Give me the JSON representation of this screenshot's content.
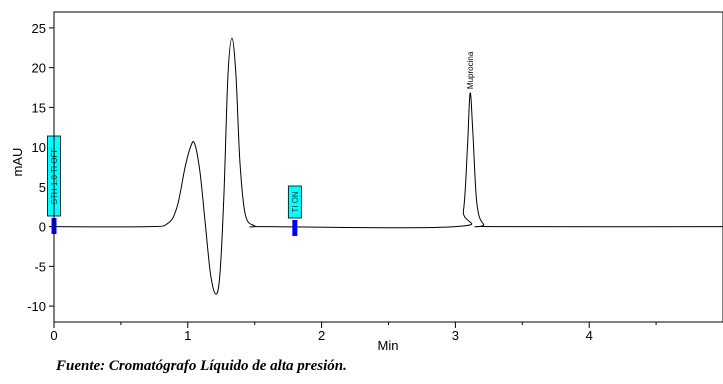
{
  "caption": "Fuente: Cromatógrafo Líquido de alta presión.",
  "chart_data": {
    "type": "line",
    "title": "",
    "xlabel": "Min",
    "ylabel": "mAU",
    "xlim": [
      0,
      5
    ],
    "ylim": [
      -12,
      27
    ],
    "x_ticks": [
      "0",
      "1",
      "2",
      "3",
      "4"
    ],
    "y_ticks": [
      "-10",
      "-5",
      "0",
      "5",
      "10",
      "15",
      "20",
      "25"
    ],
    "grid": false,
    "legend": "none",
    "line_color": "#000000",
    "series": [
      {
        "values": [
          [
            0.0,
            0.0
          ],
          [
            0.7,
            0.0
          ],
          [
            0.85,
            0.4
          ],
          [
            0.92,
            2.5
          ],
          [
            0.98,
            7.5
          ],
          [
            1.02,
            10.0
          ],
          [
            1.05,
            10.5
          ],
          [
            1.09,
            7.0
          ],
          [
            1.13,
            0.5
          ],
          [
            1.17,
            -6.0
          ],
          [
            1.21,
            -8.5
          ],
          [
            1.24,
            -6.0
          ],
          [
            1.27,
            4.0
          ],
          [
            1.3,
            19.0
          ],
          [
            1.33,
            23.7
          ],
          [
            1.36,
            19.0
          ],
          [
            1.39,
            8.0
          ],
          [
            1.43,
            1.5
          ],
          [
            1.5,
            0.1
          ],
          [
            1.6,
            0.0
          ],
          [
            3.0,
            0.0
          ],
          [
            3.06,
            2.0
          ],
          [
            3.09,
            10.0
          ],
          [
            3.11,
            16.8
          ],
          [
            3.13,
            12.0
          ],
          [
            3.16,
            3.0
          ],
          [
            3.21,
            0.3
          ],
          [
            3.3,
            0.0
          ],
          [
            5.0,
            0.0
          ]
        ]
      }
    ],
    "peak_annotations": [
      {
        "x": 3.11,
        "y": 16.8,
        "label": "Muprocina"
      }
    ],
    "event_markers": [
      {
        "x": 0.0,
        "label": "STH 1.0 TI OFF",
        "color": "#00ffff"
      },
      {
        "x": 1.8,
        "label": "TI ON",
        "color": "#00ffff"
      }
    ],
    "marker_color": "#0000ff"
  }
}
